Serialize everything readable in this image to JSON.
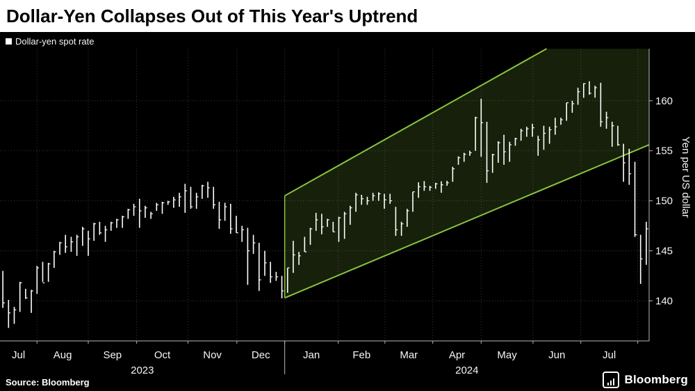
{
  "header": {
    "title": "Dollar-Yen Collapses Out of This Year's Uptrend"
  },
  "legend": {
    "series_label": "Dollar-yen spot rate"
  },
  "footer": {
    "source": "Source: Bloomberg",
    "brand": "Bloomberg"
  },
  "colors": {
    "background": "#000000",
    "title_bg": "#ffffff",
    "title_text": "#000000",
    "bar": "#ffffff",
    "grid": "#3a3a3a",
    "axis": "#b8b8b8",
    "text": "#f5f5f5",
    "channel_stroke": "#8ac43f",
    "channel_fill": "rgba(138,196,63,0.16)"
  },
  "chart_data": {
    "type": "bar",
    "subtype": "ohlc-high-low-close",
    "title": "Dollar-Yen Collapses Out of This Year's Uptrend",
    "legend": "Dollar-yen spot rate",
    "ylabel": "Yen per US dollar",
    "y_ticks": [
      140,
      145,
      150,
      155,
      160
    ],
    "y_domain": [
      136,
      165.2
    ],
    "x_boundaries": [
      0,
      6.5,
      15.5,
      24,
      33,
      41.6,
      50,
      59.4,
      67.6,
      76,
      84.5,
      93.6,
      102,
      112,
      114
    ],
    "x_month_labels": [
      "Jul",
      "Aug",
      "Sep",
      "Oct",
      "Nov",
      "Dec",
      "Jan",
      "Feb",
      "Mar",
      "Apr",
      "May",
      "Jun",
      "Jul",
      ""
    ],
    "x_years": [
      {
        "label": "2023",
        "span": [
          0,
          50
        ]
      },
      {
        "label": "2024",
        "span": [
          50,
          114
        ]
      }
    ],
    "year_divider": 50,
    "grid": true,
    "legend_position": "top-left",
    "bars_note": "Each bar = high, low, close of USD/JPY over ~2-3 trading days, Jul 2023 - Aug 2024",
    "bars": [
      [
        143.0,
        139.3,
        139.8
      ],
      [
        140.1,
        137.3,
        138.8
      ],
      [
        139.4,
        137.7,
        139.1
      ],
      [
        141.9,
        138.9,
        141.8
      ],
      [
        141.2,
        140.2,
        140.3
      ],
      [
        141.1,
        138.8,
        141.0
      ],
      [
        143.5,
        140.7,
        143.3
      ],
      [
        143.9,
        141.9,
        141.8
      ],
      [
        143.8,
        141.9,
        143.7
      ],
      [
        145.0,
        143.3,
        144.9
      ],
      [
        145.9,
        144.6,
        145.8
      ],
      [
        146.6,
        144.8,
        145.4
      ],
      [
        146.4,
        144.9,
        145.9
      ],
      [
        146.6,
        144.5,
        146.4
      ],
      [
        147.4,
        145.5,
        147.2
      ],
      [
        147.0,
        144.5,
        146.2
      ],
      [
        147.8,
        146.0,
        147.7
      ],
      [
        147.9,
        146.6,
        146.8
      ],
      [
        147.5,
        145.9,
        147.1
      ],
      [
        147.9,
        147.0,
        147.8
      ],
      [
        148.2,
        147.3,
        148.1
      ],
      [
        148.5,
        147.3,
        148.4
      ],
      [
        149.2,
        148.2,
        149.1
      ],
      [
        149.7,
        148.5,
        149.4
      ],
      [
        150.2,
        147.3,
        149.0
      ],
      [
        149.5,
        148.3,
        149.3
      ],
      [
        148.9,
        148.2,
        148.7
      ],
      [
        149.8,
        149.0,
        149.6
      ],
      [
        149.9,
        148.7,
        149.8
      ],
      [
        150.0,
        149.6,
        149.9
      ],
      [
        150.4,
        149.3,
        150.1
      ],
      [
        150.8,
        149.4,
        150.4
      ],
      [
        151.7,
        148.8,
        151.0
      ],
      [
        151.4,
        149.2,
        149.4
      ],
      [
        150.8,
        149.2,
        150.4
      ],
      [
        151.6,
        150.2,
        151.5
      ],
      [
        151.9,
        150.3,
        151.3
      ],
      [
        151.4,
        149.2,
        149.6
      ],
      [
        149.9,
        147.2,
        148.1
      ],
      [
        149.8,
        148.0,
        149.4
      ],
      [
        149.7,
        146.7,
        147.2
      ],
      [
        148.5,
        146.8,
        146.8
      ],
      [
        147.5,
        145.9,
        147.1
      ],
      [
        147.3,
        141.6,
        145.0
      ],
      [
        146.6,
        144.7,
        145.8
      ],
      [
        145.8,
        141.0,
        142.1
      ],
      [
        145.0,
        142.5,
        143.8
      ],
      [
        143.9,
        141.8,
        142.4
      ],
      [
        142.9,
        142.0,
        142.4
      ],
      [
        142.5,
        140.25,
        141.0
      ],
      [
        143.3,
        140.8,
        143.3
      ],
      [
        146.0,
        142.8,
        144.6
      ],
      [
        144.9,
        143.6,
        144.5
      ],
      [
        146.4,
        144.9,
        144.9
      ],
      [
        147.3,
        145.6,
        147.2
      ],
      [
        148.8,
        147.0,
        148.1
      ],
      [
        148.7,
        146.65,
        147.4
      ],
      [
        148.2,
        147.4,
        148.1
      ],
      [
        147.9,
        146.9,
        146.9
      ],
      [
        148.4,
        145.9,
        148.3
      ],
      [
        148.9,
        146.2,
        148.7
      ],
      [
        149.5,
        147.6,
        149.3
      ],
      [
        150.8,
        148.9,
        150.6
      ],
      [
        150.6,
        149.6,
        150.2
      ],
      [
        150.4,
        149.6,
        150.0
      ],
      [
        150.8,
        150.0,
        150.5
      ],
      [
        150.85,
        150.0,
        150.7
      ],
      [
        150.7,
        149.2,
        150.1
      ],
      [
        150.7,
        149.7,
        150.0
      ],
      [
        149.4,
        146.5,
        147.1
      ],
      [
        147.9,
        146.5,
        147.7
      ],
      [
        149.2,
        147.4,
        149.0
      ],
      [
        150.9,
        148.9,
        150.9
      ],
      [
        151.85,
        150.3,
        151.4
      ],
      [
        151.97,
        151.0,
        151.4
      ],
      [
        151.5,
        151.0,
        151.35
      ],
      [
        151.8,
        151.2,
        151.7
      ],
      [
        151.95,
        150.8,
        151.6
      ],
      [
        152.0,
        151.5,
        151.8
      ],
      [
        153.4,
        151.9,
        153.2
      ],
      [
        154.45,
        153.6,
        154.3
      ],
      [
        154.8,
        153.9,
        154.65
      ],
      [
        155.0,
        154.5,
        154.8
      ],
      [
        158.4,
        155.0,
        158.3
      ],
      [
        160.2,
        154.4,
        157.8
      ],
      [
        157.9,
        151.8,
        153.0
      ],
      [
        154.7,
        152.8,
        154.6
      ],
      [
        155.95,
        153.8,
        155.8
      ],
      [
        156.6,
        153.6,
        154.9
      ],
      [
        155.9,
        153.9,
        155.6
      ],
      [
        156.3,
        155.5,
        156.2
      ],
      [
        157.2,
        156.0,
        157.0
      ],
      [
        157.4,
        156.4,
        157.2
      ],
      [
        157.7,
        156.4,
        157.3
      ],
      [
        156.5,
        154.5,
        156.1
      ],
      [
        157.5,
        155.1,
        156.75
      ],
      [
        157.4,
        155.7,
        157.1
      ],
      [
        158.3,
        156.6,
        157.4
      ],
      [
        158.3,
        157.6,
        158.1
      ],
      [
        159.8,
        158.0,
        159.8
      ],
      [
        160.0,
        158.8,
        159.7
      ],
      [
        161.3,
        159.6,
        160.9
      ],
      [
        161.75,
        160.3,
        161.7
      ],
      [
        161.95,
        160.6,
        160.75
      ],
      [
        161.5,
        160.3,
        161.3
      ],
      [
        161.8,
        157.4,
        157.9
      ],
      [
        158.9,
        157.2,
        158.3
      ],
      [
        157.9,
        155.4,
        157.5
      ],
      [
        157.5,
        155.5,
        155.6
      ],
      [
        155.7,
        151.9,
        153.8
      ],
      [
        155.2,
        151.6,
        152.7
      ],
      [
        153.9,
        146.4,
        146.6
      ],
      [
        146.6,
        141.7,
        144.2
      ],
      [
        147.9,
        143.6,
        147.2
      ]
    ],
    "channel": {
      "lower": [
        [
          50,
          140.3
        ],
        [
          114,
          155.6
        ]
      ],
      "upper": [
        [
          50,
          150.5
        ],
        [
          96,
          165.2
        ]
      ]
    }
  }
}
